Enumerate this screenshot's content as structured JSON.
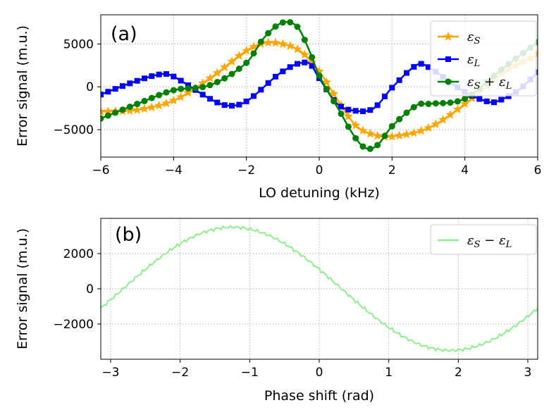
{
  "chart_data": [
    {
      "type": "line",
      "panel_label": "(a)",
      "xlabel": "LO detuning (kHz)",
      "ylabel": "Error signal (m.u.)",
      "xlim": [
        -6,
        6
      ],
      "ylim": [
        -8200,
        8400
      ],
      "xticks": [
        -6,
        -4,
        -2,
        0,
        2,
        4,
        6
      ],
      "xtick_labels": [
        "−6",
        "−4",
        "−2",
        "0",
        "2",
        "4",
        "6"
      ],
      "yticks": [
        -5000,
        0,
        5000
      ],
      "ytick_labels": [
        "−5000",
        "0",
        "5000"
      ],
      "grid": true,
      "legend_position": "top-right",
      "series": [
        {
          "name": "εS",
          "legend_main": "ε",
          "legend_sub": "S",
          "color": "#ffa500",
          "marker": "star",
          "x": [
            -6,
            -5,
            -4,
            -3,
            -2,
            -1.5,
            -1,
            -0.5,
            0,
            0.5,
            1,
            1.5,
            2,
            3,
            4,
            5,
            6
          ],
          "y": [
            -2900,
            -2700,
            -1600,
            1000,
            4200,
            5100,
            5000,
            4100,
            1800,
            -1500,
            -4500,
            -5600,
            -5800,
            -4800,
            -2000,
            1500,
            3800
          ]
        },
        {
          "name": "εL",
          "legend_main": "ε",
          "legend_sub": "L",
          "color": "#0000ff",
          "marker": "square",
          "x": [
            -6,
            -5,
            -4.3,
            -4,
            -3,
            -2.5,
            -2,
            -1,
            -0.3,
            0,
            0.5,
            1,
            1.5,
            2,
            2.7,
            3,
            4,
            4.7,
            5,
            5.5,
            6
          ],
          "y": [
            -900,
            700,
            1500,
            1200,
            -1400,
            -2200,
            -1700,
            1800,
            2800,
            1000,
            -2000,
            -2800,
            -2500,
            -100,
            2600,
            2300,
            -600,
            -1800,
            -1500,
            -300,
            1700
          ]
        },
        {
          "name": "εS + εL",
          "legend_main": "ε",
          "legend_sub": "S",
          "legend_main2": "ε",
          "legend_sub2": "L",
          "legend_op": "+",
          "color": "#008000",
          "marker": "circle",
          "x": [
            -6,
            -5,
            -4,
            -3,
            -2,
            -1.5,
            -1,
            -0.6,
            -0.3,
            0,
            0.5,
            1,
            1.3,
            1.6,
            2,
            2.7,
            3,
            4,
            5,
            6
          ],
          "y": [
            -3700,
            -2000,
            -400,
            200,
            2800,
            5800,
            7500,
            7000,
            4500,
            1300,
            -2400,
            -6000,
            -7200,
            -6800,
            -4600,
            -2100,
            -2000,
            -1400,
            2000,
            5200
          ]
        }
      ]
    },
    {
      "type": "line",
      "panel_label": "(b)",
      "xlabel": "Phase shift (rad)",
      "ylabel": "Error signal (m.u.)",
      "xlim": [
        -3.1416,
        3.1416
      ],
      "ylim": [
        -4000,
        4000
      ],
      "xticks": [
        -3,
        -2,
        -1,
        0,
        1,
        2,
        3
      ],
      "xtick_labels": [
        "−3",
        "−2",
        "−1",
        "0",
        "1",
        "2",
        "3"
      ],
      "yticks": [
        -2000,
        0,
        2000
      ],
      "ytick_labels": [
        "−2000",
        "0",
        "2000"
      ],
      "grid": true,
      "legend_position": "top-right",
      "series": [
        {
          "name": "εS − εL",
          "legend_main": "ε",
          "legend_sub": "S",
          "legend_main2": "ε",
          "legend_sub2": "L",
          "legend_op": "−",
          "color": "#90ee90",
          "marker": "none",
          "amplitude": 3500,
          "phase_center": -1.25
        }
      ]
    }
  ]
}
